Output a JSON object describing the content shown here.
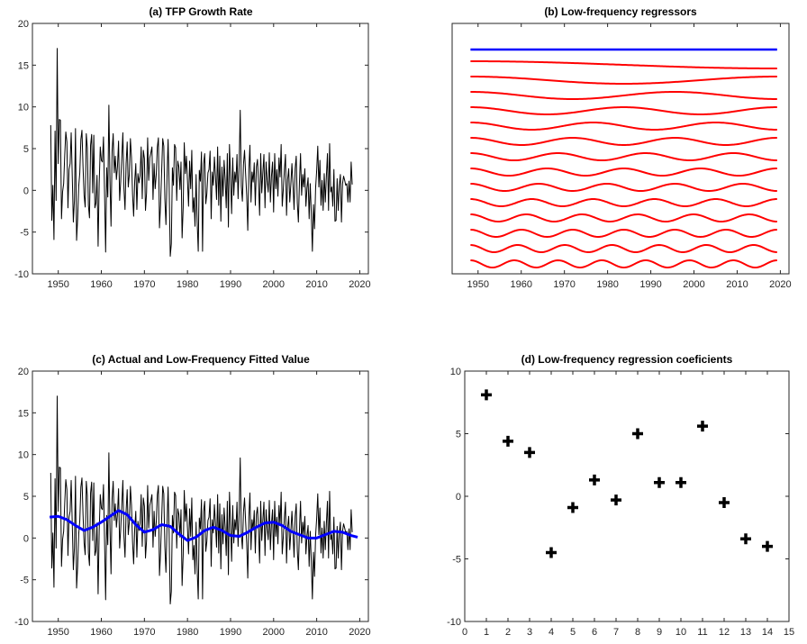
{
  "panels": [
    {
      "id": "a",
      "title": "(a) TFP Growth Rate",
      "colors": {
        "series": "#000000"
      }
    },
    {
      "id": "b",
      "title": "(b) Low-frequency regressors",
      "colors": {
        "constant": "#0000ff",
        "cosines": "#ff0000"
      }
    },
    {
      "id": "c",
      "title": "(c) Actual and Low-Frequency Fitted Value",
      "colors": {
        "actual": "#000000",
        "fitted": "#0000ff"
      }
    },
    {
      "id": "d",
      "title": "(d) Low-frequency regression coeficients",
      "colors": {
        "marker": "#000000"
      }
    }
  ],
  "chart_data": [
    {
      "panel": "a",
      "type": "line",
      "title": "(a) TFP Growth Rate",
      "xlim": [
        1944,
        2022
      ],
      "ylim": [
        -10,
        20
      ],
      "xticks": [
        1950,
        1960,
        1970,
        1980,
        1990,
        2000,
        2010,
        2020
      ],
      "yticks": [
        -10,
        -5,
        0,
        5,
        10,
        15,
        20
      ],
      "series": [
        {
          "x_start": 1948.25,
          "x_step": 0.25,
          "y": [
            7.8,
            -3.6,
            0.6,
            -5.9,
            7.1,
            -1.2,
            17.0,
            3.2,
            8.5,
            8.4,
            -3.4,
            -0.2,
            0.8,
            4.2,
            7.0,
            5.8,
            -2.1,
            2.5,
            3.2,
            6.9,
            1.7,
            -3.8,
            -1.2,
            7.4,
            -6.0,
            -3.4,
            0.5,
            2.1,
            6.1,
            7.2,
            2.8,
            -0.6,
            -2.0,
            6.8,
            5.1,
            -1.8,
            -3.3,
            5.4,
            6.7,
            -0.3,
            6.6,
            -2.1,
            -1.5,
            1.8,
            -6.7,
            0.8,
            5.2,
            3.6,
            3.4,
            6.4,
            -0.4,
            -7.4,
            2.7,
            -0.8,
            10.2,
            1.3,
            -4.3,
            4.7,
            6.8,
            2.1,
            4.1,
            1.3,
            2.9,
            5.9,
            -1.2,
            1.1,
            4.0,
            6.9,
            0.2,
            -2.3,
            3.2,
            5.8,
            0.4,
            1.9,
            6.2,
            3.9,
            -0.5,
            -3.1,
            1.1,
            3.2,
            -2.3,
            2.0,
            0.9,
            1.8,
            5.2,
            -1.0,
            4.8,
            3.8,
            -2.4,
            -0.3,
            6.3,
            1.2,
            3.9,
            4.5,
            5.2,
            -1.1,
            3.2,
            0.2,
            1.9,
            5.2,
            6.3,
            -4.5,
            -1.7,
            2.2,
            6.2,
            5.3,
            -1.0,
            -4.1,
            1.5,
            6.1,
            0.4,
            -7.9,
            -6.4,
            2.7,
            0.6,
            5.5,
            5.1,
            -1.2,
            3.5,
            2.8,
            0.1,
            3.4,
            -5.7,
            -2.1,
            5.7,
            2.0,
            4.1,
            1.2,
            -1.9,
            3.5,
            0.2,
            4.8,
            -2.6,
            -0.9,
            -4.3,
            1.9,
            -3.8,
            -7.3,
            2.4,
            1.1,
            4.6,
            -7.3,
            3.2,
            4.4,
            -1.6,
            -0.4,
            2.1,
            2.5,
            4.7,
            -3.4,
            2.2,
            0.6,
            4.0,
            1.7,
            -1.1,
            5.2,
            -1.8,
            4.1,
            -3.7,
            2.8,
            -0.7,
            3.6,
            1.3,
            -2.1,
            4.4,
            -4.4,
            5.5,
            1.6,
            -2.8,
            3.9,
            -0.6,
            2.2,
            1.0,
            4.3,
            -1.0,
            3.2,
            9.6,
            0.5,
            -1.3,
            3.1,
            4.8,
            2.0,
            -0.6,
            -4.8,
            2.5,
            5.4,
            -1.4,
            2.2,
            1.0,
            3.3,
            -1.8,
            2.8,
            3.7,
            0.9,
            -3.0,
            4.4,
            -0.3,
            2.1,
            4.3,
            -2.1,
            3.4,
            1.2,
            -0.2,
            4.5,
            -1.4,
            1.7,
            3.4,
            -2.6,
            4.4,
            0.2,
            2.5,
            -0.7,
            3.9,
            1.6,
            5.5,
            -1.9,
            0.1,
            2.4,
            4.3,
            -3.0,
            1.3,
            2.6,
            -1.4,
            0.7,
            3.2,
            0.7,
            -2.3,
            2.6,
            4.1,
            -1.5,
            -3.8,
            1.0,
            4.4,
            -0.6,
            1.9,
            0.4,
            2.6,
            -1.9,
            0.3,
            1.5,
            -3.4,
            0.8,
            -2.8,
            -7.3,
            -1.7,
            -4.6,
            0.3,
            2.4,
            5.3,
            0.4,
            3.6,
            -1.8,
            1.2,
            -2.4,
            2.0,
            -1.4,
            1.7,
            4.4,
            -2.4,
            5.6,
            -0.2,
            0.4,
            -1.9,
            2.5,
            -3.7,
            -3.6,
            1.4,
            -2.4,
            0.6,
            1.9,
            -3.8,
            0.8,
            1.7,
            1.2,
            0.6,
            0.8,
            -1.4,
            1.1,
            -1.4,
            3.4,
            0.7
          ]
        }
      ]
    },
    {
      "panel": "b",
      "type": "line",
      "title": "(b) Low-frequency regressors",
      "xlim": [
        1944,
        2022
      ],
      "xticks": [
        1950,
        1960,
        1970,
        1980,
        1990,
        2000,
        2010,
        2020
      ],
      "x_range": [
        1948.25,
        2019.25
      ],
      "regressors": {
        "constant": 1,
        "cosine_frequencies": [
          1,
          2,
          3,
          4,
          5,
          6,
          7,
          8,
          9,
          10,
          11,
          12,
          13,
          14
        ]
      }
    },
    {
      "panel": "c",
      "type": "line",
      "title": "(c) Actual and Low-Frequency Fitted Value",
      "xlim": [
        1944,
        2022
      ],
      "ylim": [
        -10,
        20
      ],
      "xticks": [
        1950,
        1960,
        1970,
        1980,
        1990,
        2000,
        2010,
        2020
      ],
      "yticks": [
        -10,
        -5,
        0,
        5,
        10,
        15,
        20
      ],
      "series": [
        {
          "source": "panel_a"
        },
        {
          "x": [
            1948,
            1950,
            1952,
            1954,
            1956,
            1958,
            1960,
            1962,
            1964,
            1966,
            1968,
            1970,
            1972,
            1974,
            1976,
            1978,
            1980,
            1982,
            1984,
            1986,
            1988,
            1990,
            1992,
            1994,
            1996,
            1998,
            2000,
            2002,
            2004,
            2006,
            2008,
            2010,
            2012,
            2014,
            2016,
            2018,
            2019.5
          ],
          "y": [
            2.5,
            2.6,
            2.2,
            1.5,
            0.9,
            1.3,
            1.9,
            2.6,
            3.3,
            2.8,
            1.6,
            0.7,
            1.0,
            1.6,
            1.4,
            0.5,
            -0.3,
            0.1,
            0.9,
            1.3,
            0.9,
            0.3,
            0.2,
            0.7,
            1.3,
            1.8,
            1.9,
            1.5,
            0.8,
            0.4,
            0.0,
            0.0,
            0.4,
            0.8,
            0.7,
            0.3,
            0.1
          ]
        }
      ]
    },
    {
      "panel": "d",
      "type": "scatter",
      "title": "(d) Low-frequency regression coeficients",
      "xlim": [
        0,
        15
      ],
      "ylim": [
        -10,
        10
      ],
      "xticks": [
        0,
        1,
        2,
        3,
        4,
        5,
        6,
        7,
        8,
        9,
        10,
        11,
        12,
        13,
        14,
        15
      ],
      "yticks": [
        -10,
        -5,
        0,
        5,
        10
      ],
      "x": [
        1,
        2,
        3,
        4,
        5,
        6,
        7,
        8,
        9,
        10,
        11,
        12,
        13,
        14
      ],
      "y": [
        8.1,
        4.4,
        3.5,
        -4.5,
        -0.9,
        1.3,
        -0.3,
        5.0,
        1.1,
        1.1,
        5.6,
        -0.5,
        -3.4,
        -4.0
      ]
    }
  ]
}
